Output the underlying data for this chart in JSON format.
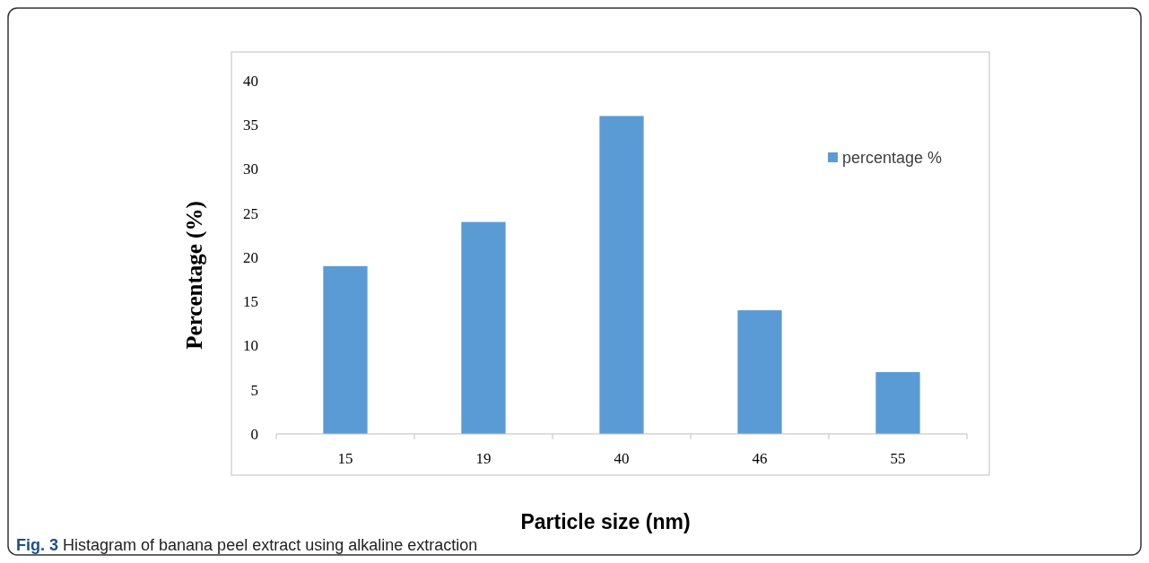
{
  "chart_data": {
    "type": "bar",
    "xlabel": "Particle size (nm)",
    "ylabel": "Percentage (%)",
    "categories": [
      "15",
      "19",
      "40",
      "46",
      "55"
    ],
    "series": [
      {
        "name": "percentage %",
        "color": "#5b9bd5",
        "values": [
          19,
          24,
          36,
          14,
          7
        ]
      }
    ],
    "ylim": [
      0,
      40
    ],
    "yticks": [
      0,
      5,
      10,
      15,
      20,
      25,
      30,
      35,
      40
    ],
    "grid": false,
    "legend": "top right",
    "annotations": [
      "Fig. 3 Histagram of banana peel extract using alkaline extraction"
    ]
  }
}
